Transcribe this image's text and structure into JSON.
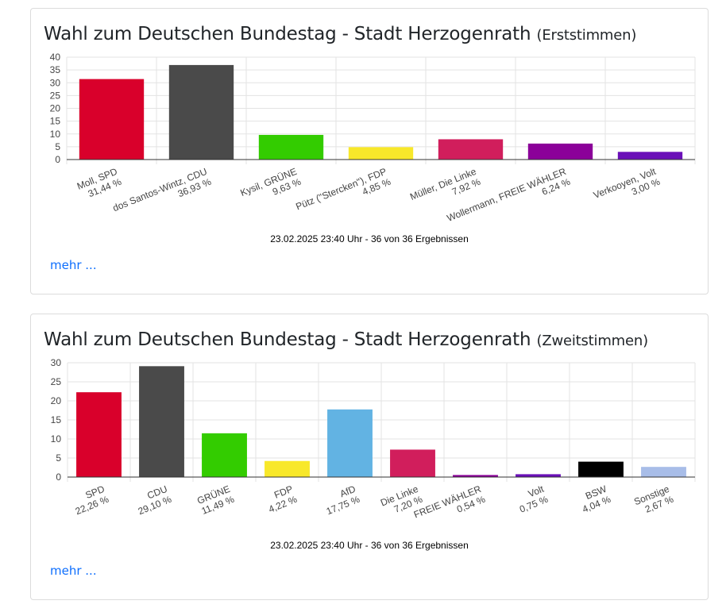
{
  "cards": [
    {
      "title": "Wahl zum Deutschen Bundestag - Stadt Herzogenrath",
      "subtitle": "(Erststimmen)",
      "footer": "23.02.2025 23:40 Uhr - 36 von 36 Ergebnissen",
      "more_label": "mehr ..."
    },
    {
      "title": "Wahl zum Deutschen Bundestag - Stadt Herzogenrath",
      "subtitle": "(Zweitstimmen)",
      "footer": "23.02.2025 23:40 Uhr - 36 von 36 Ergebnissen",
      "more_label": "mehr ..."
    }
  ],
  "chart_data": [
    {
      "type": "bar",
      "title": "Wahl zum Deutschen Bundestag - Stadt Herzogenrath (Erststimmen)",
      "ylim": [
        0,
        40
      ],
      "yticks": [
        0,
        5,
        10,
        15,
        20,
        25,
        30,
        35,
        40
      ],
      "grid": true,
      "categories": [
        {
          "name": "Moll, SPD",
          "pct": "31,44 %"
        },
        {
          "name": "dos Santos-Wintz, CDU",
          "pct": "36,93 %"
        },
        {
          "name": "Kysil, GRÜNE",
          "pct": "9,63 %"
        },
        {
          "name": "Pütz (\"Stercken\"), FDP",
          "pct": "4,85 %"
        },
        {
          "name": "Müller, Die Linke",
          "pct": "7,92 %"
        },
        {
          "name": "Wollermann, FREIE WÄHLER",
          "pct": "6,24 %"
        },
        {
          "name": "Verkooyen, Volt",
          "pct": "3,00 %"
        }
      ],
      "values": [
        31.44,
        36.93,
        9.63,
        4.85,
        7.92,
        6.24,
        3.0
      ],
      "colors": [
        "#d9002b",
        "#4a4a4a",
        "#33cc00",
        "#f8e82a",
        "#d11e5c",
        "#8b0099",
        "#6a0fb8"
      ]
    },
    {
      "type": "bar",
      "title": "Wahl zum Deutschen Bundestag - Stadt Herzogenrath (Zweitstimmen)",
      "ylim": [
        0,
        30
      ],
      "yticks": [
        0,
        5,
        10,
        15,
        20,
        25,
        30
      ],
      "grid": true,
      "categories": [
        {
          "name": "SPD",
          "pct": "22,26 %"
        },
        {
          "name": "CDU",
          "pct": "29,10 %"
        },
        {
          "name": "GRÜNE",
          "pct": "11,49 %"
        },
        {
          "name": "FDP",
          "pct": "4,22 %"
        },
        {
          "name": "AfD",
          "pct": "17,75 %"
        },
        {
          "name": "Die Linke",
          "pct": "7,20 %"
        },
        {
          "name": "FREIE WÄHLER",
          "pct": "0,54 %"
        },
        {
          "name": "Volt",
          "pct": "0,75 %"
        },
        {
          "name": "BSW",
          "pct": "4,04 %"
        },
        {
          "name": "Sonstige",
          "pct": "2,67 %"
        }
      ],
      "values": [
        22.26,
        29.1,
        11.49,
        4.22,
        17.75,
        7.2,
        0.54,
        0.75,
        4.04,
        2.67
      ],
      "colors": [
        "#d9002b",
        "#4a4a4a",
        "#33cc00",
        "#f8e82a",
        "#62b3e3",
        "#d11e5c",
        "#8b0099",
        "#6a0fb8",
        "#000000",
        "#a8bde8"
      ]
    }
  ]
}
